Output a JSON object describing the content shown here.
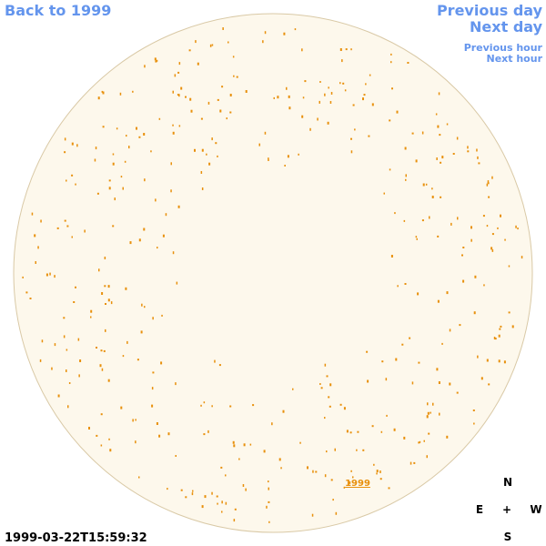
{
  "navigation": {
    "back": "Back to 1999",
    "previous_day": "Previous day",
    "next_day": "Next day",
    "previous_hour": "Previous hour",
    "next_hour": "Next hour"
  },
  "disk_link": "1999",
  "compass": {
    "north": "N",
    "east": "E",
    "center": "+",
    "west": "W",
    "south": "S"
  },
  "timestamp": "1999-03-22T15:59:32"
}
